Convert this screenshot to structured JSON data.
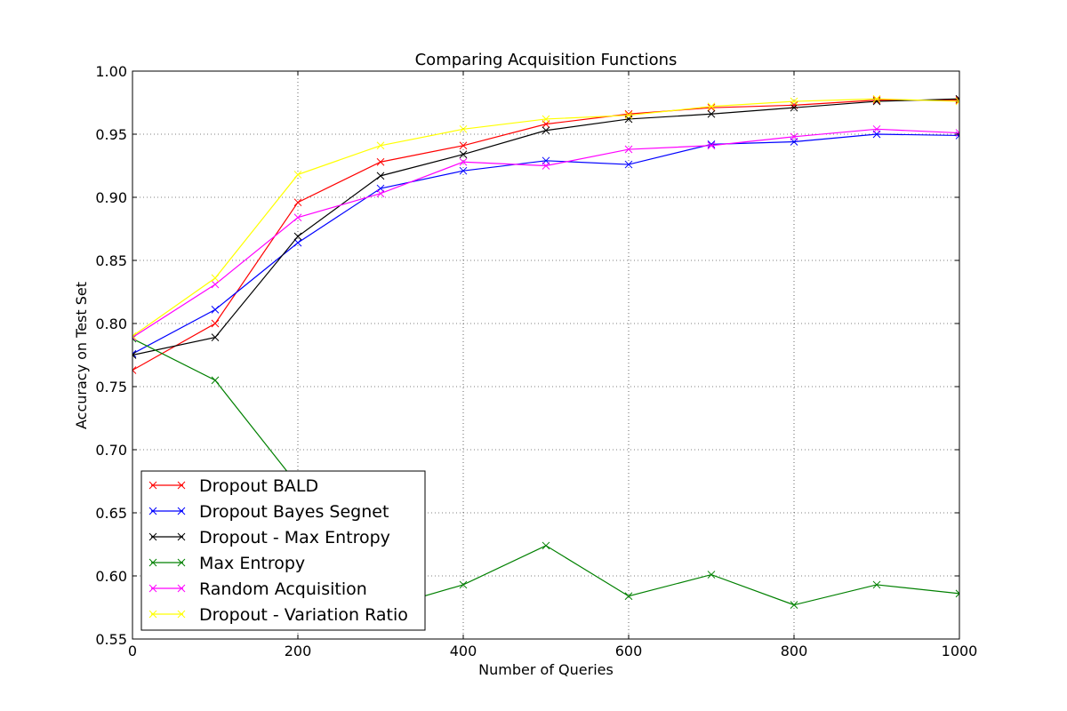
{
  "chart_data": {
    "type": "line",
    "title": "Comparing Acquisition Functions",
    "xlabel": "Number of Queries",
    "ylabel": "Accuracy on Test Set",
    "xlim": [
      0,
      1000
    ],
    "ylim": [
      0.55,
      1.0
    ],
    "xticks": [
      0,
      200,
      400,
      600,
      800,
      1000
    ],
    "xtick_labels": [
      "0",
      "200",
      "400",
      "600",
      "800",
      "1000"
    ],
    "yticks": [
      0.55,
      0.6,
      0.65,
      0.7,
      0.75,
      0.8,
      0.85,
      0.9,
      0.95,
      1.0
    ],
    "ytick_labels": [
      "0.55",
      "0.60",
      "0.65",
      "0.70",
      "0.75",
      "0.80",
      "0.85",
      "0.90",
      "0.95",
      "1.00"
    ],
    "grid": true,
    "legend_position": "lower-left",
    "marker": "x",
    "x": [
      0,
      100,
      200,
      300,
      400,
      500,
      600,
      700,
      800,
      900,
      1000
    ],
    "series": [
      {
        "name": "Dropout BALD",
        "color": "#ff0000",
        "values": [
          0.763,
          0.8,
          0.896,
          0.928,
          0.941,
          0.958,
          0.966,
          0.971,
          0.973,
          0.977,
          0.977
        ]
      },
      {
        "name": "Dropout Bayes Segnet",
        "color": "#0000ff",
        "values": [
          0.776,
          0.811,
          0.864,
          0.907,
          0.921,
          0.929,
          0.926,
          0.942,
          0.944,
          0.95,
          0.949
        ]
      },
      {
        "name": "Dropout - Max Entropy",
        "color": "#000000",
        "values": [
          0.775,
          0.789,
          0.869,
          0.917,
          0.934,
          0.953,
          0.962,
          0.966,
          0.971,
          0.976,
          0.978
        ]
      },
      {
        "name": "Max Entropy",
        "color": "#008000",
        "values": [
          0.788,
          0.755,
          0.672,
          0.574,
          0.593,
          0.624,
          0.584,
          0.601,
          0.577,
          0.593,
          0.586
        ]
      },
      {
        "name": "Random Acquisition",
        "color": "#ff00ff",
        "values": [
          0.789,
          0.831,
          0.884,
          0.903,
          0.928,
          0.925,
          0.938,
          0.941,
          0.948,
          0.954,
          0.951
        ]
      },
      {
        "name": "Dropout - Variation Ratio",
        "color": "#ffff00",
        "values": [
          0.79,
          0.836,
          0.918,
          0.941,
          0.954,
          0.962,
          0.965,
          0.972,
          0.976,
          0.978,
          0.976
        ]
      }
    ]
  }
}
